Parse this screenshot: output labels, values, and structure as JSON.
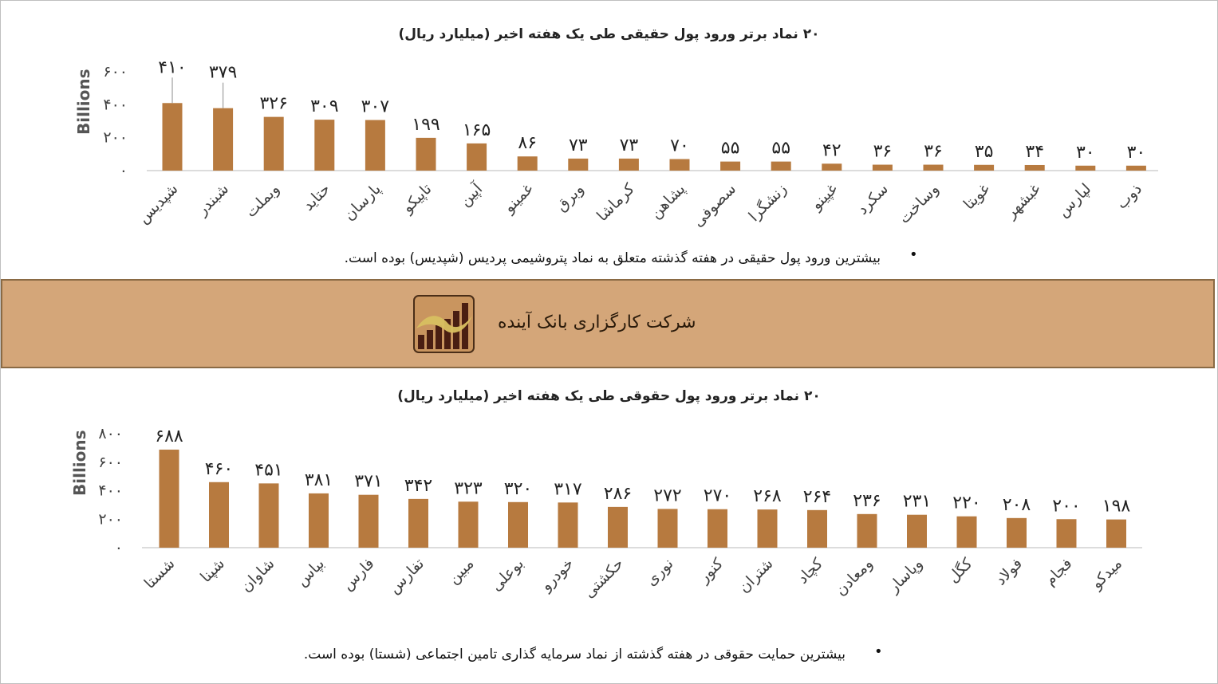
{
  "colors": {
    "bar": "#b77a3f",
    "band": "#d4a679",
    "band_border": "#8a6a44"
  },
  "chart_data": [
    {
      "type": "bar",
      "title": "۲۰ نماد برتر ورود پول حقیقی طی یک هفته اخیر (میلیارد ریال)",
      "ylabel": "Billions",
      "ylim": [
        0,
        600
      ],
      "yticks": [
        "۰",
        "۲۰۰",
        "۴۰۰",
        "۶۰۰"
      ],
      "categories": [
        "شپدیس",
        "شبندر",
        "وبملت",
        "حتاید",
        "پارسان",
        "تاپیکو",
        "آپین",
        "غمینو",
        "وبرق",
        "کرماشا",
        "پشاهن",
        "سصوفی",
        "زنشگرا",
        "غپینو",
        "سکرد",
        "وساخت",
        "غویتا",
        "غبشهر",
        "لپارس",
        "ذوب"
      ],
      "values": [
        410,
        379,
        326,
        309,
        307,
        199,
        165,
        86,
        73,
        73,
        70,
        55,
        55,
        42,
        36,
        36,
        35,
        34,
        30,
        30
      ],
      "data_labels": [
        "۴۱۰",
        "۳۷۹",
        "۳۲۶",
        "۳۰۹",
        "۳۰۷",
        "۱۹۹",
        "۱۶۵",
        "۸۶",
        "۷۳",
        "۷۳",
        "۷۰",
        "۵۵",
        "۵۵",
        "۴۲",
        "۳۶",
        "۳۶",
        "۳۵",
        "۳۴",
        "۳۰",
        "۳۰"
      ],
      "legend": "none",
      "grid": false
    },
    {
      "type": "bar",
      "title": "۲۰ نماد برتر ورود پول حقوقی طی یک هفته اخیر (میلیارد ریال)",
      "ylabel": "Billions",
      "ylim": [
        0,
        800
      ],
      "yticks": [
        "۰",
        "۲۰۰",
        "۴۰۰",
        "۶۰۰",
        "۸۰۰"
      ],
      "categories": [
        "شستا",
        "شپنا",
        "شاوان",
        "بپاس",
        "فارس",
        "تفارس",
        "مبین",
        "بوعلی",
        "خودرو",
        "حکشتی",
        "نوری",
        "کنور",
        "شتران",
        "کچاد",
        "ومعادن",
        "وپاسار",
        "کگل",
        "فولاد",
        "فجام",
        "میدکو"
      ],
      "values": [
        688,
        460,
        451,
        381,
        371,
        342,
        323,
        320,
        317,
        286,
        272,
        270,
        268,
        264,
        236,
        231,
        220,
        208,
        200,
        198
      ],
      "data_labels": [
        "۶۸۸",
        "۴۶۰",
        "۴۵۱",
        "۳۸۱",
        "۳۷۱",
        "۳۴۲",
        "۳۲۳",
        "۳۲۰",
        "۳۱۷",
        "۲۸۶",
        "۲۷۲",
        "۲۷۰",
        "۲۶۸",
        "۲۶۴",
        "۲۳۶",
        "۲۳۱",
        "۲۲۰",
        "۲۰۸",
        "۲۰۰",
        "۱۹۸"
      ],
      "legend": "none",
      "grid": false
    }
  ],
  "notes": {
    "top": "بیشترین ورود پول حقیقی در هفته گذشته متعلق به نماد پتروشیمی پردیس (شپدیس) بوده است.",
    "bottom": "بیشترین حمایت حقوقی در هفته گذشته از نماد سرمایه گذاری تامین اجتماعی (شستا) بوده است.",
    "bullet": "•"
  },
  "band": {
    "company_name": "شرکت کارگزاری بانک آینده",
    "logo_icon": "bank-ayandeh-logo-icon"
  }
}
